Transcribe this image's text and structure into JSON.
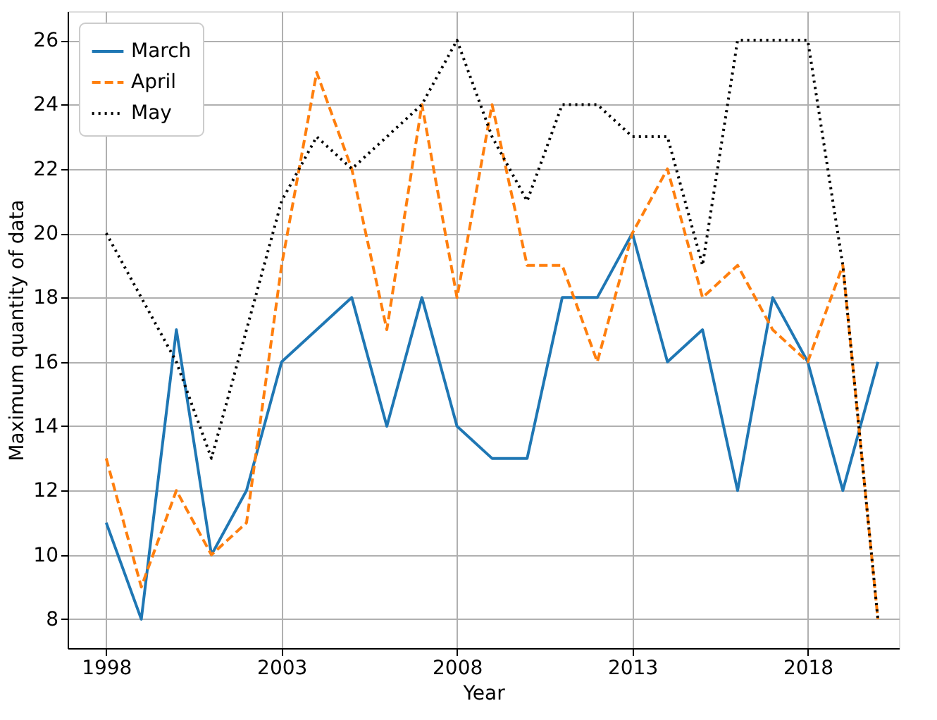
{
  "chart_data": {
    "type": "line",
    "xlabel": "Year",
    "ylabel": "Maximum quantity of data",
    "x": [
      1998,
      1999,
      2000,
      2001,
      2002,
      2003,
      2004,
      2005,
      2006,
      2007,
      2008,
      2009,
      2010,
      2011,
      2012,
      2013,
      2014,
      2015,
      2016,
      2017,
      2018,
      2019,
      2020
    ],
    "series": [
      {
        "name": "March",
        "color": "#1f77b4",
        "line_style": "solid",
        "values": [
          11,
          8,
          17,
          10,
          12,
          16,
          17,
          18,
          14,
          18,
          14,
          13,
          13,
          18,
          18,
          20,
          16,
          17,
          12,
          18,
          16,
          12,
          16
        ]
      },
      {
        "name": "April",
        "color": "#ff7f0e",
        "line_style": "dashed",
        "values": [
          13,
          9,
          12,
          10,
          11,
          19,
          25,
          22,
          17,
          24,
          18,
          24,
          19,
          19,
          16,
          20,
          22,
          18,
          19,
          17,
          16,
          19,
          8
        ]
      },
      {
        "name": "May",
        "color": "#000000",
        "line_style": "dotted",
        "values": [
          20,
          18,
          16,
          13,
          17,
          21,
          23,
          22,
          23,
          24,
          26,
          23,
          21,
          24,
          24,
          23,
          23,
          19,
          26,
          26,
          26,
          19,
          8
        ]
      }
    ],
    "xlim": [
      1996.9,
      2020.6
    ],
    "ylim": [
      7.1,
      26.9
    ],
    "xticks": [
      1998,
      2003,
      2008,
      2013,
      2018
    ],
    "yticks": [
      8,
      10,
      12,
      14,
      16,
      18,
      20,
      22,
      24,
      26
    ],
    "grid": true,
    "legend": "top left",
    "marker": "none"
  }
}
